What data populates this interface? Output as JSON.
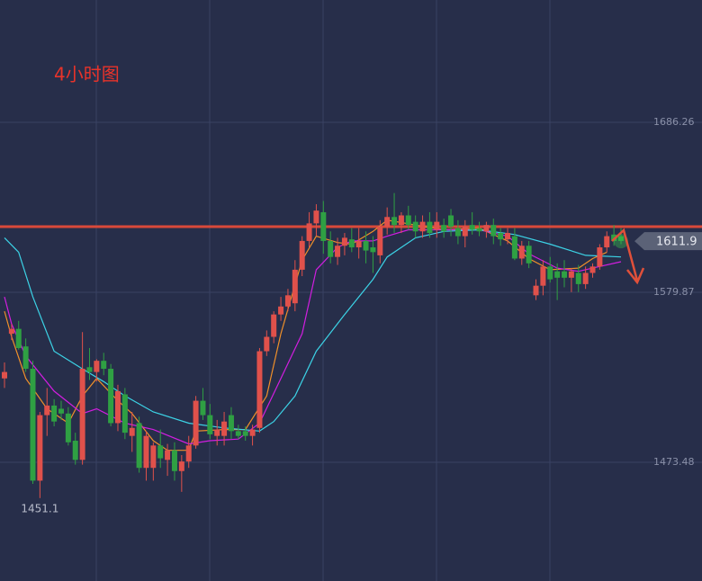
{
  "chart_data": {
    "type": "candlestick",
    "title": "4小时图",
    "ylim": [
      1399.2,
      1762.8
    ],
    "yticks": [
      1473.48,
      1579.87,
      1686.26
    ],
    "grid": true,
    "up_color": "#e0514b",
    "down_color": "#2fa043",
    "last_price": 1611.9,
    "low_label": 1451.1,
    "candles": [
      [
        1526,
        1536,
        1520,
        1530
      ],
      [
        1554,
        1560,
        1550,
        1557
      ],
      [
        1557,
        1562,
        1544,
        1545
      ],
      [
        1546,
        1551,
        1530,
        1532
      ],
      [
        1532,
        1537,
        1460,
        1462
      ],
      [
        1462,
        1505,
        1451.1,
        1503
      ],
      [
        1503,
        1520,
        1490,
        1509
      ],
      [
        1509,
        1513,
        1496,
        1499
      ],
      [
        1507,
        1512,
        1500,
        1504
      ],
      [
        1504,
        1508,
        1484,
        1486
      ],
      [
        1487,
        1492,
        1472,
        1475
      ],
      [
        1475,
        1555,
        1472,
        1532
      ],
      [
        1533,
        1545,
        1525,
        1530
      ],
      [
        1530,
        1538,
        1524,
        1537
      ],
      [
        1537,
        1542,
        1528,
        1532
      ],
      [
        1532,
        1535,
        1496,
        1498
      ],
      [
        1498,
        1522,
        1493,
        1518
      ],
      [
        1516,
        1520,
        1488,
        1492
      ],
      [
        1490,
        1505,
        1480,
        1495
      ],
      [
        1498,
        1502,
        1467,
        1470
      ],
      [
        1470,
        1493,
        1462,
        1490
      ],
      [
        1470,
        1486,
        1462,
        1484
      ],
      [
        1484,
        1494,
        1470,
        1476
      ],
      [
        1475,
        1485,
        1465,
        1481
      ],
      [
        1481,
        1486,
        1462,
        1468
      ],
      [
        1468,
        1478,
        1455,
        1474
      ],
      [
        1474,
        1490,
        1470,
        1484
      ],
      [
        1484,
        1515,
        1482,
        1512
      ],
      [
        1512,
        1520,
        1500,
        1503
      ],
      [
        1503,
        1510,
        1488,
        1491
      ],
      [
        1490,
        1500,
        1484,
        1494
      ],
      [
        1490,
        1505,
        1484,
        1499
      ],
      [
        1503,
        1508,
        1488,
        1493
      ],
      [
        1493,
        1497,
        1488,
        1490
      ],
      [
        1493,
        1496,
        1487,
        1490
      ],
      [
        1490,
        1497,
        1484,
        1494
      ],
      [
        1495,
        1545,
        1492,
        1543
      ],
      [
        1543,
        1556,
        1540,
        1552
      ],
      [
        1552,
        1568,
        1548,
        1566
      ],
      [
        1566,
        1577,
        1562,
        1571
      ],
      [
        1571,
        1582,
        1568,
        1578
      ],
      [
        1573,
        1600,
        1568,
        1594
      ],
      [
        1594,
        1615,
        1590,
        1612
      ],
      [
        1612,
        1630,
        1608,
        1623
      ],
      [
        1623,
        1635,
        1615,
        1631
      ],
      [
        1630,
        1637,
        1604,
        1612
      ],
      [
        1612,
        1618,
        1598,
        1602
      ],
      [
        1602,
        1614,
        1597,
        1609
      ],
      [
        1609,
        1617,
        1603,
        1614
      ],
      [
        1613,
        1620,
        1605,
        1608
      ],
      [
        1608,
        1620,
        1601,
        1612
      ],
      [
        1612,
        1618,
        1598,
        1606
      ],
      [
        1608,
        1615,
        1592,
        1605
      ],
      [
        1603,
        1625,
        1598,
        1621
      ],
      [
        1621,
        1633,
        1616,
        1627
      ],
      [
        1627,
        1642,
        1617,
        1622
      ],
      [
        1622,
        1630,
        1617,
        1628
      ],
      [
        1628,
        1634,
        1619,
        1622
      ],
      [
        1624,
        1628,
        1614,
        1618
      ],
      [
        1618,
        1628,
        1614,
        1624
      ],
      [
        1624,
        1630,
        1614,
        1617
      ],
      [
        1619,
        1630,
        1614,
        1624
      ],
      [
        1622,
        1626,
        1614,
        1618
      ],
      [
        1628,
        1632,
        1615,
        1621
      ],
      [
        1620,
        1625,
        1610,
        1615
      ],
      [
        1615,
        1625,
        1608,
        1621
      ],
      [
        1622,
        1630,
        1616,
        1619
      ],
      [
        1620,
        1624,
        1615,
        1618
      ],
      [
        1618,
        1624,
        1614,
        1622
      ],
      [
        1622,
        1626,
        1610,
        1615
      ],
      [
        1617,
        1620,
        1609,
        1613
      ],
      [
        1613,
        1620,
        1610,
        1617
      ],
      [
        1615,
        1620,
        1600,
        1601
      ],
      [
        1601,
        1612,
        1597,
        1609
      ],
      [
        1609,
        1612,
        1595,
        1598
      ],
      [
        1578,
        1588,
        1575,
        1584
      ],
      [
        1584,
        1600,
        1578,
        1596
      ],
      [
        1596,
        1602,
        1586,
        1588
      ],
      [
        1593,
        1598,
        1575,
        1589
      ],
      [
        1593,
        1600,
        1583,
        1589
      ],
      [
        1589,
        1595,
        1580,
        1593
      ],
      [
        1592,
        1597,
        1580,
        1585
      ],
      [
        1585,
        1596,
        1582,
        1592
      ],
      [
        1592,
        1598,
        1589,
        1596
      ],
      [
        1596,
        1610,
        1594,
        1608
      ],
      [
        1608,
        1618,
        1605,
        1615
      ],
      [
        1616,
        1622,
        1609,
        1612
      ],
      [
        1615,
        1620,
        1610,
        1612
      ]
    ],
    "series": [
      {
        "color": "#f0902a",
        "x": [
          0,
          1,
          3,
          6,
          8,
          9,
          11,
          13,
          16,
          18,
          21,
          23,
          26,
          27,
          31,
          34,
          37,
          39,
          42,
          44,
          47,
          49,
          52,
          54,
          58,
          62,
          67,
          71,
          74,
          77,
          81,
          83,
          85
        ],
        "values": [
          1568,
          1552,
          1526,
          1507,
          1501,
          1498,
          1515,
          1526,
          1512,
          1504,
          1487,
          1481,
          1481,
          1493,
          1494,
          1494,
          1515,
          1554,
          1600,
          1615,
          1611,
          1610,
          1618,
          1625,
          1622,
          1619,
          1620,
          1612,
          1601,
          1594,
          1595,
          1601,
          1605
        ]
      },
      {
        "color": "#d21ee0",
        "x": [
          0,
          1,
          3,
          7,
          11,
          13,
          17,
          21,
          26,
          29,
          33,
          36,
          39,
          42,
          44,
          47,
          49,
          52,
          54,
          57,
          62,
          67,
          71,
          74,
          78,
          81,
          83,
          87
        ],
        "values": [
          1577,
          1560,
          1540,
          1518,
          1504,
          1507,
          1498,
          1494,
          1485,
          1487,
          1488,
          1498,
          1526,
          1554,
          1594,
          1608,
          1612,
          1612,
          1615,
          1619,
          1619,
          1619,
          1615,
          1604,
          1595,
          1593,
          1595,
          1599
        ]
      },
      {
        "color": "#3cd3e6",
        "x": [
          0,
          2,
          4,
          7,
          11,
          14,
          17,
          21,
          26,
          31,
          36,
          38,
          41,
          44,
          48,
          52,
          54,
          58,
          62,
          67,
          72,
          77,
          82,
          87
        ],
        "values": [
          1614,
          1605,
          1577,
          1543,
          1532,
          1524,
          1515,
          1505,
          1498,
          1495,
          1493,
          1499,
          1515,
          1543,
          1566,
          1588,
          1602,
          1614,
          1618,
          1619,
          1616,
          1610,
          1603,
          1602
        ]
      }
    ]
  }
}
